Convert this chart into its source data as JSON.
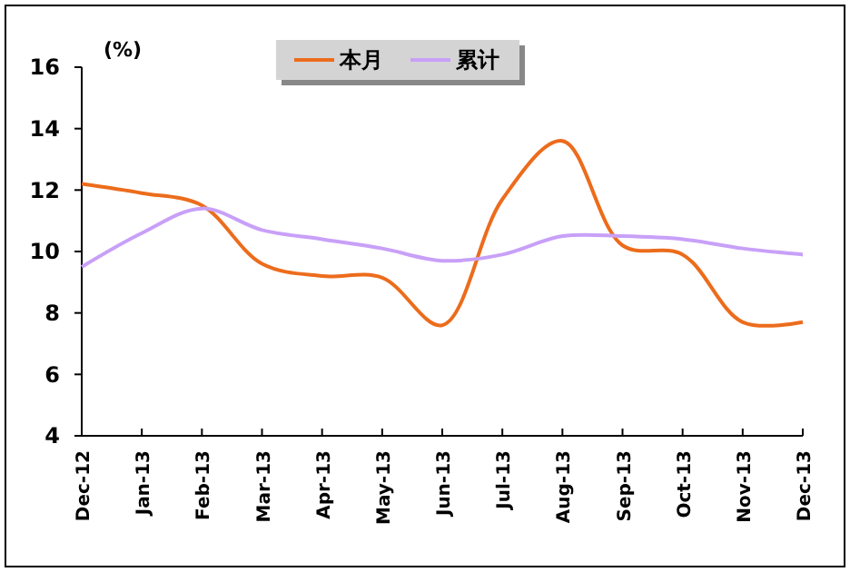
{
  "chart_data": {
    "type": "line",
    "ylabel": "(%)",
    "categories": [
      "Dec-12",
      "Jan-13",
      "Feb-13",
      "Mar-13",
      "Apr-13",
      "May-13",
      "Jun-13",
      "Jul-13",
      "Aug-13",
      "Sep-13",
      "Oct-13",
      "Nov-13",
      "Dec-13"
    ],
    "series": [
      {
        "name": "本月",
        "color": "#ec6c1c",
        "values": [
          12.2,
          11.9,
          11.5,
          9.6,
          9.2,
          9.15,
          7.6,
          11.7,
          13.6,
          10.2,
          9.9,
          7.7,
          7.7
        ]
      },
      {
        "name": "累计",
        "color": "#c8a0f8",
        "values": [
          9.5,
          10.6,
          11.4,
          10.7,
          10.4,
          10.1,
          9.7,
          9.9,
          10.5,
          10.5,
          10.4,
          10.1,
          9.9
        ]
      }
    ],
    "ylim": [
      4,
      16
    ],
    "yticks": [
      4,
      6,
      8,
      10,
      12,
      14,
      16
    ],
    "grid": false,
    "legend": "top",
    "marker": "none",
    "line_style": "solid"
  }
}
